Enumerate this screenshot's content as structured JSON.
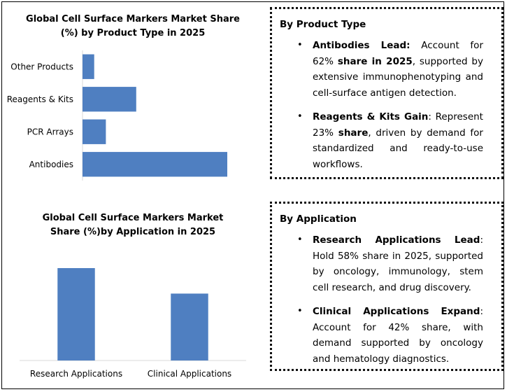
{
  "chart_data": [
    {
      "type": "bar",
      "orientation": "horizontal",
      "title": "Global Cell Surface Markers Market Share (%) by Product Type in 2025",
      "title_lines": [
        "Global Cell Surface Markers Market Share",
        "(%) by Product Type in 2025"
      ],
      "categories": [
        "Antibodies",
        "PCR Arrays",
        "Reagents & Kits",
        "Other Products"
      ],
      "values": [
        62,
        10,
        23,
        5
      ],
      "xlim": [
        0,
        62
      ],
      "color": "#4f7fc1",
      "grid": false
    },
    {
      "type": "bar",
      "orientation": "vertical",
      "title": "Global Cell Surface Markers Market Share (%)by Application in 2025",
      "title_lines": [
        "Global Cell Surface Markers Market",
        "Share (%)by Application in 2025"
      ],
      "categories": [
        "Research Applications",
        "Clinical Applications"
      ],
      "values": [
        58,
        42
      ],
      "ylim": [
        0,
        58
      ],
      "color": "#4f7fc1",
      "grid": false
    }
  ],
  "product_box": {
    "heading": "By Product Type",
    "bullets": [
      {
        "bold": "Antibodies Lead:",
        "text1": " Account for 62% ",
        "bold2": "share in 2025",
        "text2": ", supported by extensive immunophenotyping and cell-surface antigen detection."
      },
      {
        "bold": "Reagents & Kits Gain",
        "text1": ": Represent 23% ",
        "bold2": "share",
        "text2": ", driven by demand for standardized and ready-to-use workflows."
      }
    ]
  },
  "application_box": {
    "heading": "By Application",
    "bullets": [
      {
        "bold": "Research Applications Lead",
        "text1": ": Hold 58% share in 2025, supported by oncology, immunology, stem cell research, and drug discovery.",
        "bold2": "",
        "text2": ""
      },
      {
        "bold": "Clinical Applications Expand",
        "text1": ": Account for 42% share, with demand supported by oncology and hematology diagnostics.",
        "bold2": "",
        "text2": ""
      }
    ]
  },
  "bullet_glyph": "•"
}
